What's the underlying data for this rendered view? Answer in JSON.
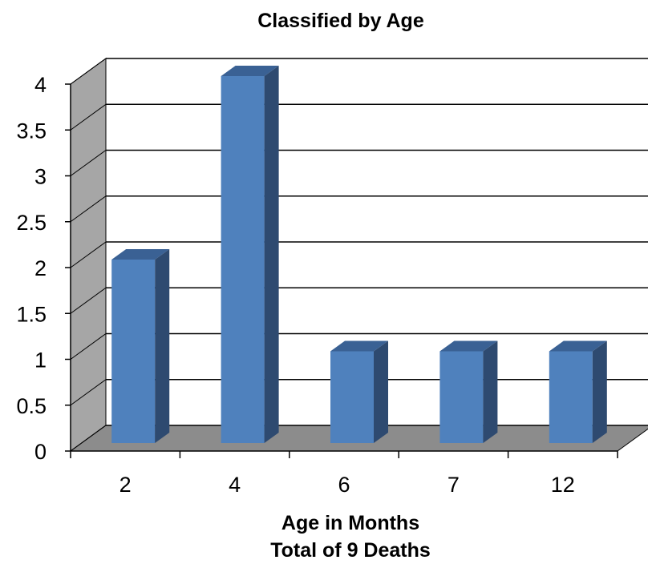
{
  "chart_data": {
    "type": "bar",
    "title": "Classified by Age",
    "xlabel": [
      "Age in Months",
      "Total of 9 Deaths"
    ],
    "ylabel": "",
    "categories": [
      "2",
      "4",
      "6",
      "7",
      "12"
    ],
    "values": [
      2,
      4,
      1,
      1,
      1
    ],
    "ylim": [
      0,
      4
    ],
    "yticks": [
      "0",
      "0.5",
      "1",
      "1.5",
      "2",
      "2.5",
      "3",
      "3.5",
      "4"
    ],
    "grid": true,
    "legend": "none",
    "three_d": true
  },
  "colors": {
    "bar_front": "#4F81BD",
    "bar_top": "#3A6194",
    "bar_side": "#2E4A70",
    "side_wall": "#A6A6A6",
    "floor": "#8C8C8C"
  }
}
